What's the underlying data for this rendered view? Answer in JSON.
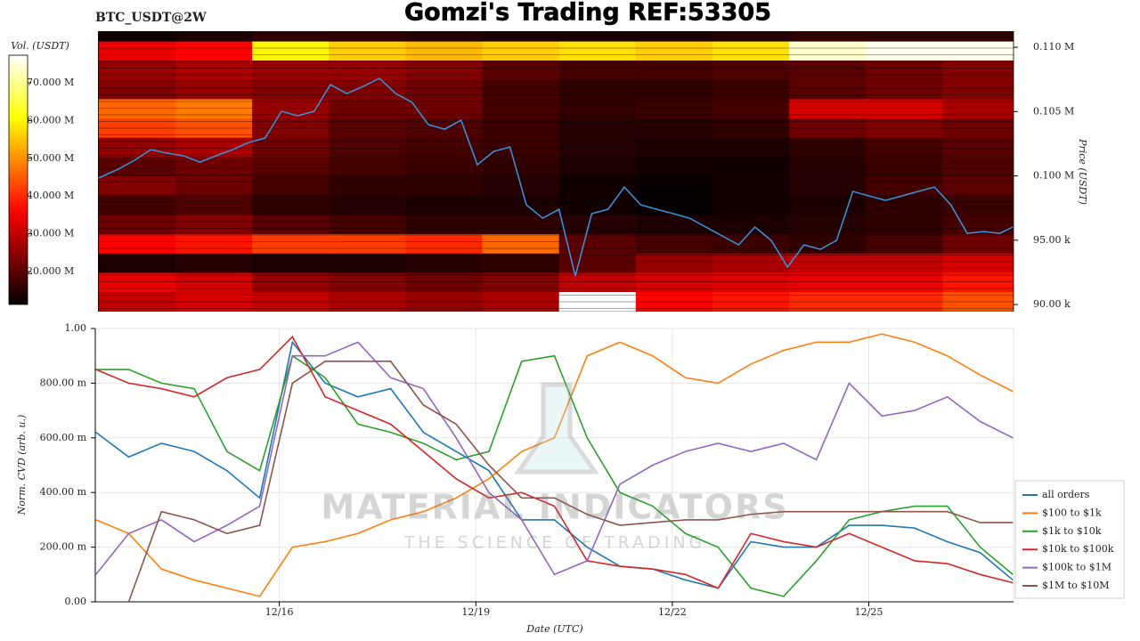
{
  "chart_data": [
    {
      "type": "heatmap",
      "ticker": "BTC_USDT@2W",
      "title": "Gomzi's Trading REF:53305",
      "colorbar_label": "Vol. (USDT)",
      "y_label": "Price (USDT)",
      "colormap": "hot",
      "clim": [
        11300000,
        77300000
      ],
      "cticks": [
        {
          "value": 20000000,
          "label": "20.000 M"
        },
        {
          "value": 30000000,
          "label": "30.000 M"
        },
        {
          "value": 40000000,
          "label": "40.000 M"
        },
        {
          "value": 50000000,
          "label": "50.000 M"
        },
        {
          "value": 60000000,
          "label": "60.000 M"
        },
        {
          "value": 70000000,
          "label": "70.000 M"
        }
      ],
      "xlim": [
        13.19,
        27.21
      ],
      "ylim": [
        89450,
        111250
      ],
      "yticks": [
        {
          "value": 90000,
          "label": "90.00 k"
        },
        {
          "value": 95000,
          "label": "95.00 k"
        },
        {
          "value": 100000,
          "label": "0.100 M"
        },
        {
          "value": 105000,
          "label": "0.105 M"
        },
        {
          "value": 110000,
          "label": "0.110 M"
        }
      ],
      "x_edges": [
        13.2,
        14.375,
        15.55,
        16.725,
        17.9,
        19.075,
        20.25,
        21.425,
        22.6,
        23.775,
        24.95,
        26.125,
        27.3
      ],
      "y_edges": [
        89500,
        91000,
        92500,
        94000,
        95500,
        97000,
        98500,
        100000,
        101500,
        103000,
        104500,
        106000,
        107500,
        109000,
        110500,
        112000
      ],
      "values": [
        [
          30000000.0,
          32000000.0,
          30000000.0,
          28000000.0,
          26000000.0,
          28000000.0,
          78000000.0,
          36000000.0,
          38000000.0,
          40000000.0,
          40000000.0,
          44000000.0
        ],
        [
          34000000.0,
          32000000.0,
          26000000.0,
          24000000.0,
          22000000.0,
          24000000.0,
          30000000.0,
          32000000.0,
          33000000.0,
          34000000.0,
          34000000.0,
          38000000.0
        ],
        [
          14000000.0,
          15000000.0,
          14000000.0,
          14000000.0,
          15000000.0,
          16000000.0,
          20000000.0,
          26000000.0,
          28000000.0,
          30000000.0,
          30000000.0,
          32000000.0
        ],
        [
          36000000.0,
          38000000.0,
          42000000.0,
          42000000.0,
          40000000.0,
          46000000.0,
          20000000.0,
          18000000.0,
          17000000.0,
          16000000.0,
          18000000.0,
          22000000.0
        ],
        [
          22000000.0,
          24000000.0,
          20000000.0,
          18000000.0,
          16000000.0,
          16000000.0,
          15000000.0,
          14000000.0,
          14000000.0,
          15000000.0,
          16000000.0,
          18000000.0
        ],
        [
          18000000.0,
          19000000.0,
          16000000.0,
          15000000.0,
          14000000.0,
          14000000.0,
          13000000.0,
          12000000.0,
          13000000.0,
          14000000.0,
          16000000.0,
          17000000.0
        ],
        [
          24000000.0,
          22000000.0,
          18000000.0,
          16000000.0,
          16000000.0,
          15000000.0,
          13000000.0,
          12000000.0,
          13000000.0,
          15000000.0,
          18000000.0,
          20000000.0
        ],
        [
          20000000.0,
          22000000.0,
          20000000.0,
          18000000.0,
          17000000.0,
          16000000.0,
          14000000.0,
          13000000.0,
          13000000.0,
          15000000.0,
          17000000.0,
          19000000.0
        ],
        [
          26000000.0,
          28000000.0,
          22000000.0,
          19000000.0,
          18000000.0,
          17000000.0,
          15000000.0,
          14000000.0,
          14000000.0,
          16000000.0,
          18000000.0,
          20000000.0
        ],
        [
          42000000.0,
          44000000.0,
          24000000.0,
          20000000.0,
          19000000.0,
          17000000.0,
          15000000.0,
          15000000.0,
          16000000.0,
          22000000.0,
          24000000.0,
          22000000.0
        ],
        [
          46000000.0,
          48000000.0,
          26000000.0,
          22000000.0,
          22000000.0,
          18000000.0,
          16000000.0,
          17000000.0,
          18000000.0,
          32000000.0,
          32000000.0,
          28000000.0
        ],
        [
          24000000.0,
          26000000.0,
          24000000.0,
          24000000.0,
          22000000.0,
          18000000.0,
          16000000.0,
          16000000.0,
          17000000.0,
          20000000.0,
          22000000.0,
          24000000.0
        ],
        [
          26000000.0,
          28000000.0,
          26000000.0,
          26000000.0,
          24000000.0,
          20000000.0,
          18000000.0,
          18000000.0,
          19000000.0,
          20000000.0,
          22000000.0,
          24000000.0
        ],
        [
          34000000.0,
          36000000.0,
          60000000.0,
          56000000.0,
          54000000.0,
          56000000.0,
          58000000.0,
          56000000.0,
          58000000.0,
          74000000.0,
          76000000.0,
          76000000.0
        ],
        [
          13000000.0,
          14000000.0,
          16000000.0,
          16000000.0,
          15000000.0,
          14000000.0,
          14000000.0,
          14000000.0,
          15000000.0,
          16000000.0,
          16000000.0,
          16000000.0
        ]
      ],
      "x": [
        13.2,
        13.5,
        13.75,
        14.0,
        14.25,
        14.5,
        14.75,
        15.0,
        15.25,
        15.5,
        15.75,
        16.0,
        16.25,
        16.5,
        16.75,
        17.0,
        17.25,
        17.5,
        17.75,
        18.0,
        18.25,
        18.5,
        18.75,
        19.0,
        19.25,
        19.5,
        19.75,
        20.0,
        20.25,
        20.5,
        20.75,
        21.0,
        21.25,
        21.5,
        21.75,
        22.0,
        22.25,
        22.5,
        22.75,
        23.0,
        23.25,
        23.5,
        23.75,
        24.0,
        24.25,
        24.5,
        24.75,
        25.0,
        25.25,
        25.5,
        25.75,
        26.0,
        26.25,
        26.5,
        26.75,
        27.0,
        27.2
      ],
      "line": {
        "color": "#3b8fd4",
        "values": [
          99830,
          100520,
          101210,
          102040,
          101760,
          101560,
          101070,
          101560,
          102040,
          102600,
          102940,
          105020,
          104670,
          105020,
          107090,
          106400,
          106950,
          107580,
          106400,
          105710,
          103980,
          103630,
          104330,
          100870,
          101900,
          102250,
          97750,
          96710,
          97400,
          92210,
          97060,
          97400,
          99130,
          97750,
          97400,
          97060,
          96710,
          96020,
          95330,
          94640,
          96020,
          94980,
          92910,
          94640,
          94290,
          94980,
          98790,
          98440,
          98100,
          98440,
          98790,
          99130,
          97750,
          95540,
          95670,
          95540,
          96020
        ]
      }
    },
    {
      "type": "line",
      "y_label": "Norm. CVD (arb. u.)",
      "x_label": "Date (UTC)",
      "watermark": "MATERIAL INDICATORS",
      "watermark_subtitle": "THE SCIENCE OF TRADING",
      "grid": true,
      "legend": "right",
      "xlim": [
        13.19,
        27.21
      ],
      "ylim": [
        0,
        1
      ],
      "xticks": [
        {
          "value": 16,
          "label": "12/16"
        },
        {
          "value": 19,
          "label": "12/19"
        },
        {
          "value": 22,
          "label": "12/22"
        },
        {
          "value": 25,
          "label": "12/25"
        }
      ],
      "yticks": [
        {
          "value": 0,
          "label": "0.00"
        },
        {
          "value": 0.2,
          "label": "200.00 m"
        },
        {
          "value": 0.4,
          "label": "400.00 m"
        },
        {
          "value": 0.6,
          "label": "600.00 m"
        },
        {
          "value": 0.8,
          "label": "800.00 m"
        },
        {
          "value": 1,
          "label": "1.00"
        }
      ],
      "x": [
        13.2,
        13.7,
        14.2,
        14.7,
        15.2,
        15.7,
        16.2,
        16.7,
        17.2,
        17.7,
        18.2,
        18.7,
        19.2,
        19.7,
        20.2,
        20.7,
        21.2,
        21.7,
        22.2,
        22.7,
        23.2,
        23.7,
        24.2,
        24.7,
        25.2,
        25.7,
        26.2,
        26.7,
        27.2
      ],
      "series": [
        {
          "name": "all orders",
          "color": "#1f77b4",
          "values": [
            0.62,
            0.53,
            0.58,
            0.55,
            0.48,
            0.38,
            0.95,
            0.8,
            0.75,
            0.78,
            0.62,
            0.55,
            0.48,
            0.3,
            0.3,
            0.2,
            0.13,
            0.12,
            0.08,
            0.05,
            0.22,
            0.2,
            0.2,
            0.28,
            0.28,
            0.27,
            0.22,
            0.18,
            0.08
          ]
        },
        {
          "name": "$100 to $1k",
          "color": "#ff7f0e",
          "values": [
            0.3,
            0.25,
            0.12,
            0.08,
            0.05,
            0.02,
            0.2,
            0.22,
            0.25,
            0.3,
            0.33,
            0.38,
            0.45,
            0.55,
            0.6,
            0.9,
            0.95,
            0.9,
            0.82,
            0.8,
            0.87,
            0.92,
            0.95,
            0.95,
            0.98,
            0.95,
            0.9,
            0.83,
            0.77
          ]
        },
        {
          "name": "$1k to $10k",
          "color": "#2ca02c",
          "values": [
            0.85,
            0.85,
            0.8,
            0.78,
            0.55,
            0.48,
            0.9,
            0.82,
            0.65,
            0.62,
            0.58,
            0.52,
            0.55,
            0.88,
            0.9,
            0.6,
            0.4,
            0.35,
            0.25,
            0.2,
            0.05,
            0.02,
            0.15,
            0.3,
            0.33,
            0.35,
            0.35,
            0.2,
            0.1
          ]
        },
        {
          "name": "$10k to $100k",
          "color": "#d62728",
          "values": [
            0.85,
            0.8,
            0.78,
            0.75,
            0.82,
            0.85,
            0.97,
            0.75,
            0.7,
            0.65,
            0.55,
            0.45,
            0.38,
            0.4,
            0.35,
            0.15,
            0.13,
            0.12,
            0.1,
            0.05,
            0.25,
            0.22,
            0.2,
            0.25,
            0.2,
            0.15,
            0.14,
            0.1,
            0.07
          ]
        },
        {
          "name": "$100k to $1M",
          "color": "#9467bd",
          "values": [
            0.1,
            0.25,
            0.3,
            0.22,
            0.28,
            0.35,
            0.9,
            0.9,
            0.95,
            0.82,
            0.78,
            0.6,
            0.4,
            0.3,
            0.1,
            0.15,
            0.43,
            0.5,
            0.55,
            0.58,
            0.55,
            0.58,
            0.52,
            0.8,
            0.68,
            0.7,
            0.75,
            0.66,
            0.6
          ]
        },
        {
          "name": "$1M to $10M",
          "color": "#8c564b",
          "values": [
            0,
            0,
            0.33,
            0.3,
            0.25,
            0.28,
            0.8,
            0.88,
            0.88,
            0.88,
            0.72,
            0.65,
            0.5,
            0.38,
            0.38,
            0.32,
            0.28,
            0.29,
            0.3,
            0.3,
            0.32,
            0.33,
            0.33,
            0.33,
            0.33,
            0.33,
            0.33,
            0.29,
            0.29
          ]
        }
      ]
    }
  ]
}
